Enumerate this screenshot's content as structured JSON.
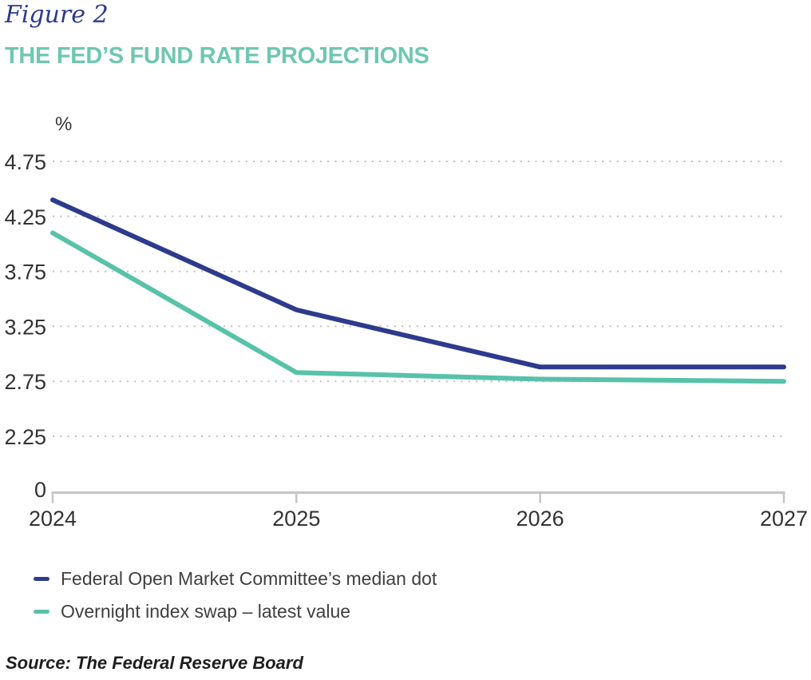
{
  "header": {
    "figure_label": "Figure 2",
    "title": "THE FED’S FUND RATE PROJECTIONS"
  },
  "chart_data": {
    "type": "line",
    "title": "THE FED’S FUND RATE PROJECTIONS",
    "unit": "%",
    "x": [
      2024,
      2025,
      2026,
      2027
    ],
    "x_tick_labels": [
      "2024",
      "2025",
      "2026",
      "2027"
    ],
    "y_ticks": [
      4.75,
      4.25,
      3.75,
      3.25,
      2.75,
      2.25
    ],
    "y_tick_labels": [
      "4.75",
      "4.25",
      "3.75",
      "3.25",
      "2.75",
      "2.25"
    ],
    "y_zero_label": "0",
    "ylim": [
      0,
      4.75
    ],
    "axis_break_between_zero_and_first_tick": true,
    "grid": "horizontal-dotted",
    "legend_position": "bottom-left",
    "series": [
      {
        "name": "Federal Open Market Committee’s median dot",
        "color": "#2d3a8d",
        "values": [
          4.4,
          3.4,
          2.88,
          2.88
        ]
      },
      {
        "name": "Overnight index swap – latest value",
        "color": "#58c2a9",
        "values": [
          4.1,
          2.83,
          2.77,
          2.75
        ]
      }
    ]
  },
  "footer": {
    "source": "Source: The Federal Reserve Board"
  },
  "theme": {
    "figure_label_color": "#2b3a8c",
    "title_color": "#6fc7b0",
    "axis_text_color": "#333333",
    "gridline_color": "#bfbfbf",
    "axis_line_color": "#c5c5c5",
    "background_color": "#ffffff"
  }
}
